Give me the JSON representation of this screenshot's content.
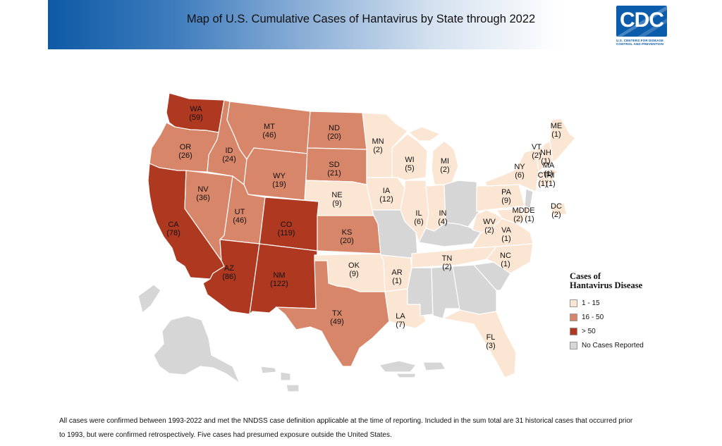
{
  "header": {
    "title": "Map of U.S. Cumulative Cases of Hantavirus by State through 2022"
  },
  "logo": {
    "text": "CDC",
    "sub1": "U.S. CENTERS FOR DISEASE",
    "sub2": "CONTROL AND PREVENTION"
  },
  "colors": {
    "low": "#fbe6d4",
    "mid": "#d8866a",
    "high": "#ae3820",
    "none": "#d6d6d6"
  },
  "legend": {
    "title_line1": "Cases of",
    "title_line2": "Hantavirus Disease",
    "items": [
      {
        "label": "1 - 15",
        "color": "#fbe6d4"
      },
      {
        "label": "16 - 50",
        "color": "#d8866a"
      },
      {
        "label": "> 50",
        "color": "#ae3820"
      },
      {
        "label": "No Cases Reported",
        "color": "#d6d6d6"
      }
    ]
  },
  "states": [
    {
      "abbr": "WA",
      "count": "(59)"
    },
    {
      "abbr": "OR",
      "count": "(26)"
    },
    {
      "abbr": "CA",
      "count": "(78)"
    },
    {
      "abbr": "NV",
      "count": "(36)"
    },
    {
      "abbr": "ID",
      "count": "(24)"
    },
    {
      "abbr": "MT",
      "count": "(46)"
    },
    {
      "abbr": "WY",
      "count": "(19)"
    },
    {
      "abbr": "UT",
      "count": "(46)"
    },
    {
      "abbr": "AZ",
      "count": "(86)"
    },
    {
      "abbr": "CO",
      "count": "(119)"
    },
    {
      "abbr": "NM",
      "count": "(122)"
    },
    {
      "abbr": "ND",
      "count": "(20)"
    },
    {
      "abbr": "SD",
      "count": "(21)"
    },
    {
      "abbr": "NE",
      "count": "(9)"
    },
    {
      "abbr": "KS",
      "count": "(20)"
    },
    {
      "abbr": "OK",
      "count": "(9)"
    },
    {
      "abbr": "TX",
      "count": "(49)"
    },
    {
      "abbr": "MN",
      "count": "(2)"
    },
    {
      "abbr": "IA",
      "count": "(12)"
    },
    {
      "abbr": "AR",
      "count": "(1)"
    },
    {
      "abbr": "LA",
      "count": "(7)"
    },
    {
      "abbr": "WI",
      "count": "(5)"
    },
    {
      "abbr": "IL",
      "count": "(6)"
    },
    {
      "abbr": "MI",
      "count": "(2)"
    },
    {
      "abbr": "IN",
      "count": "(4)"
    },
    {
      "abbr": "TN",
      "count": "(2)"
    },
    {
      "abbr": "FL",
      "count": "(3)"
    },
    {
      "abbr": "WV",
      "count": "(2)"
    },
    {
      "abbr": "VA",
      "count": "(1)"
    },
    {
      "abbr": "NC",
      "count": "(1)"
    },
    {
      "abbr": "PA",
      "count": "(9)"
    },
    {
      "abbr": "NY",
      "count": "(6)"
    },
    {
      "abbr": "MD",
      "count": "(2)"
    },
    {
      "abbr": "DE",
      "count": "(1)"
    },
    {
      "abbr": "DC",
      "count": "(2)"
    },
    {
      "abbr": "VT",
      "count": "(2)"
    },
    {
      "abbr": "NH",
      "count": "(1)"
    },
    {
      "abbr": "ME",
      "count": "(1)"
    },
    {
      "abbr": "MA",
      "count": "(1)"
    },
    {
      "abbr": "CT",
      "count": "(1)"
    },
    {
      "abbr": "RI",
      "count": "(1)"
    }
  ],
  "footnote": {
    "line1": "All cases were confirmed between 1993-2022 and met the NNDSS case definition applicable at the time of reporting. Included in the sum total are 31 historical cases that occurred prior",
    "line2": "to 1993, but were confirmed retrospectively. Five cases had presumed exposure outside the United States."
  }
}
